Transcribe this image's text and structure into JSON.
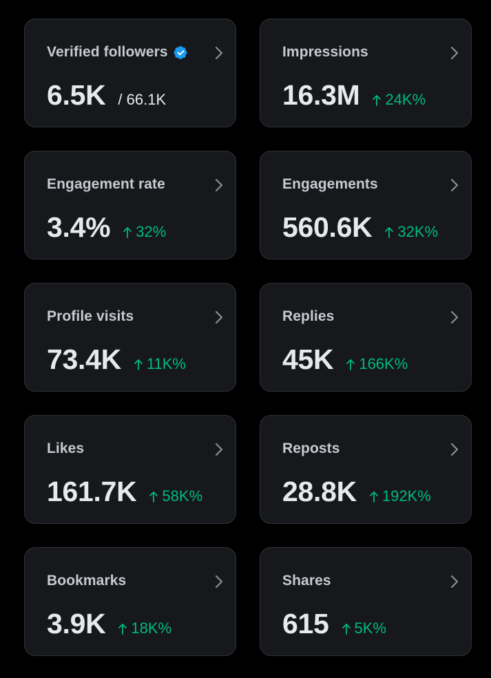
{
  "colors": {
    "background": "#000000",
    "card_background": "#16181c",
    "card_border": "#2f3336",
    "title_text": "#c7cbcf",
    "value_text": "#e7e9ea",
    "positive_change": "#00ba7c",
    "verified_badge": "#1d9bf0"
  },
  "icons": {
    "verified": "verified-badge-icon",
    "chevron": "chevron-right-icon",
    "arrow": "arrow-up-icon"
  },
  "cards": [
    {
      "title": "Verified followers",
      "value": "6.5K",
      "sub_total": "/ 66.1K",
      "change": "",
      "verified": true
    },
    {
      "title": "Impressions",
      "value": "16.3M",
      "change": "24K%"
    },
    {
      "title": "Engagement rate",
      "value": "3.4%",
      "change": "32%"
    },
    {
      "title": "Engagements",
      "value": "560.6K",
      "change": "32K%"
    },
    {
      "title": "Profile visits",
      "value": "73.4K",
      "change": "11K%"
    },
    {
      "title": "Replies",
      "value": "45K",
      "change": "166K%"
    },
    {
      "title": "Likes",
      "value": "161.7K",
      "change": "58K%"
    },
    {
      "title": "Reposts",
      "value": "28.8K",
      "change": "192K%"
    },
    {
      "title": "Bookmarks",
      "value": "3.9K",
      "change": "18K%"
    },
    {
      "title": "Shares",
      "value": "615",
      "change": "5K%"
    }
  ]
}
